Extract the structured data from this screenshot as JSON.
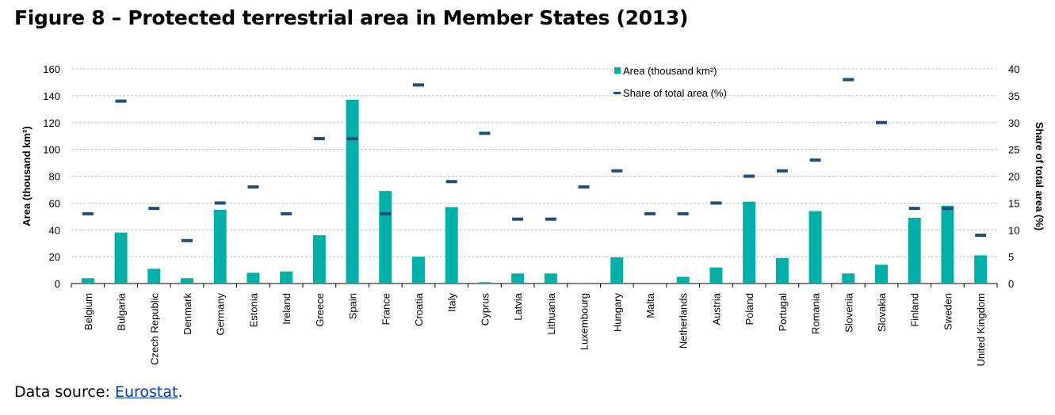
{
  "title": "Figure 8 – Protected terrestrial area in Member States (2013)",
  "source": {
    "prefix": "Data source: ",
    "link": "Eurostat",
    "suffix": "."
  },
  "chart_data": {
    "type": "bar",
    "title": "",
    "categories": [
      "Belgium",
      "Bulgaria",
      "Czech Republic",
      "Denmark",
      "Germany",
      "Estonia",
      "Ireland",
      "Greece",
      "Spain",
      "France",
      "Croatia",
      "Italy",
      "Cyprus",
      "Latvia",
      "Lithuania",
      "Luxembourg",
      "Hungary",
      "Malta",
      "Netherlands",
      "Austria",
      "Poland",
      "Portugal",
      "Romania",
      "Slovenia",
      "Slovakia",
      "Finland",
      "Sweden",
      "United Kingdom"
    ],
    "series": [
      {
        "name": "Area (thousand km²)",
        "type": "bar",
        "axis": "left",
        "color": "#00b0a8",
        "values": [
          4,
          38,
          11,
          4,
          55,
          8,
          9,
          36,
          137,
          69,
          20,
          57,
          1,
          7.5,
          7.5,
          0.5,
          19.5,
          0,
          5,
          12,
          61,
          19,
          54,
          7.5,
          14,
          49,
          58,
          21
        ]
      },
      {
        "name": "Share of total area (%)",
        "type": "marker",
        "axis": "right",
        "color": "#1f4e79",
        "values": [
          13,
          34,
          14,
          8,
          15,
          18,
          13,
          27,
          27,
          13,
          37,
          19,
          28,
          12,
          12,
          18,
          21,
          13,
          13,
          15,
          20,
          21,
          23,
          38,
          30,
          14,
          14,
          9
        ]
      }
    ],
    "ylabel": "Area (thousand km²)",
    "y2label": "Share of total area (%)",
    "ylim": [
      0,
      160
    ],
    "y2lim": [
      0,
      40
    ],
    "yticks": [
      0,
      20,
      40,
      60,
      80,
      100,
      120,
      140,
      160
    ],
    "y2ticks": [
      0,
      5,
      10,
      15,
      20,
      25,
      30,
      35,
      40
    ],
    "grid": true,
    "legend": "top-right"
  }
}
